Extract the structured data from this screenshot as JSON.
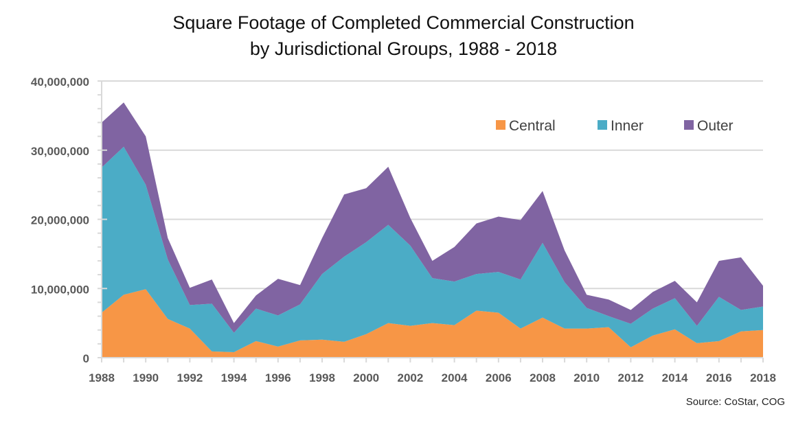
{
  "chart_data": {
    "type": "area",
    "stacked": true,
    "title": "Square Footage of Completed Commercial Construction",
    "subtitle": "by Jurisdictional Groups, 1988 - 2018",
    "xlabel": "",
    "ylabel": "",
    "x": [
      1988,
      1989,
      1990,
      1991,
      1992,
      1993,
      1994,
      1995,
      1996,
      1997,
      1998,
      1999,
      2000,
      2001,
      2002,
      2003,
      2004,
      2005,
      2006,
      2007,
      2008,
      2009,
      2010,
      2011,
      2012,
      2013,
      2014,
      2015,
      2016,
      2017,
      2018
    ],
    "xtick_labels": [
      "1988",
      "1990",
      "1992",
      "1994",
      "1996",
      "1998",
      "2000",
      "2002",
      "2004",
      "2006",
      "2008",
      "2010",
      "2012",
      "2014",
      "2016",
      "2018"
    ],
    "ylim": [
      0,
      40000000
    ],
    "ytick_labels": [
      "0",
      "10,000,000",
      "20,000,000",
      "30,000,000",
      "40,000,000"
    ],
    "yticks": [
      0,
      10000000,
      20000000,
      30000000,
      40000000
    ],
    "grid": true,
    "legend_position": "top-right",
    "series": [
      {
        "name": "Central",
        "color": "#F79646",
        "values": [
          6500000,
          9100000,
          9900000,
          5600000,
          4200000,
          900000,
          800000,
          2400000,
          1600000,
          2500000,
          2600000,
          2300000,
          3400000,
          5000000,
          4600000,
          5000000,
          4700000,
          6800000,
          6500000,
          4200000,
          5800000,
          4200000,
          4200000,
          4400000,
          1500000,
          3200000,
          4100000,
          2100000,
          2400000,
          3800000,
          4000000
        ]
      },
      {
        "name": "Inner",
        "color": "#4BACC6",
        "values": [
          21000000,
          21400000,
          15100000,
          8600000,
          3400000,
          6900000,
          2800000,
          4700000,
          4500000,
          5200000,
          9500000,
          12300000,
          13300000,
          14200000,
          11600000,
          6500000,
          6300000,
          5300000,
          5900000,
          7100000,
          10800000,
          6700000,
          3000000,
          1600000,
          3400000,
          3900000,
          4500000,
          2500000,
          6400000,
          3100000,
          3400000
        ]
      },
      {
        "name": "Outer",
        "color": "#8064A2",
        "values": [
          6500000,
          6400000,
          7000000,
          3100000,
          2500000,
          3500000,
          1400000,
          1900000,
          5300000,
          2800000,
          5200000,
          9000000,
          7800000,
          8400000,
          4000000,
          2500000,
          5000000,
          7300000,
          8000000,
          8600000,
          7500000,
          4600000,
          1900000,
          2400000,
          2000000,
          2400000,
          2500000,
          3400000,
          5200000,
          7600000,
          3000000
        ]
      }
    ],
    "source": "Source: CoStar, COG"
  }
}
